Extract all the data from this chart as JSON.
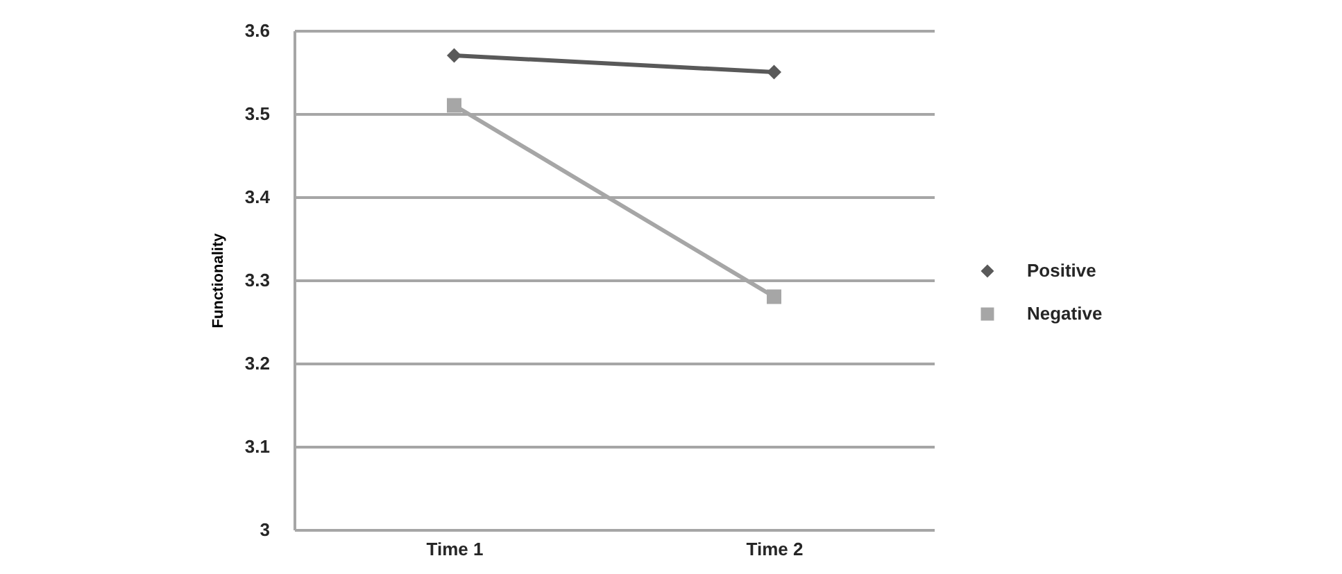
{
  "chart_data": {
    "type": "line",
    "ylabel": "Functionality",
    "categories": [
      "Time 1",
      "Time 2"
    ],
    "series": [
      {
        "name": "Positive",
        "color": "#595959",
        "marker": "diamond",
        "values": [
          3.57,
          3.55
        ]
      },
      {
        "name": "Negative",
        "color": "#a6a6a6",
        "marker": "square",
        "values": [
          3.51,
          3.28
        ]
      }
    ],
    "ylim": [
      3,
      3.6
    ],
    "yticks": [
      3,
      3.1,
      3.2,
      3.3,
      3.4,
      3.5,
      3.6
    ],
    "grid": "y",
    "legend": "right",
    "line_style": "solid"
  }
}
